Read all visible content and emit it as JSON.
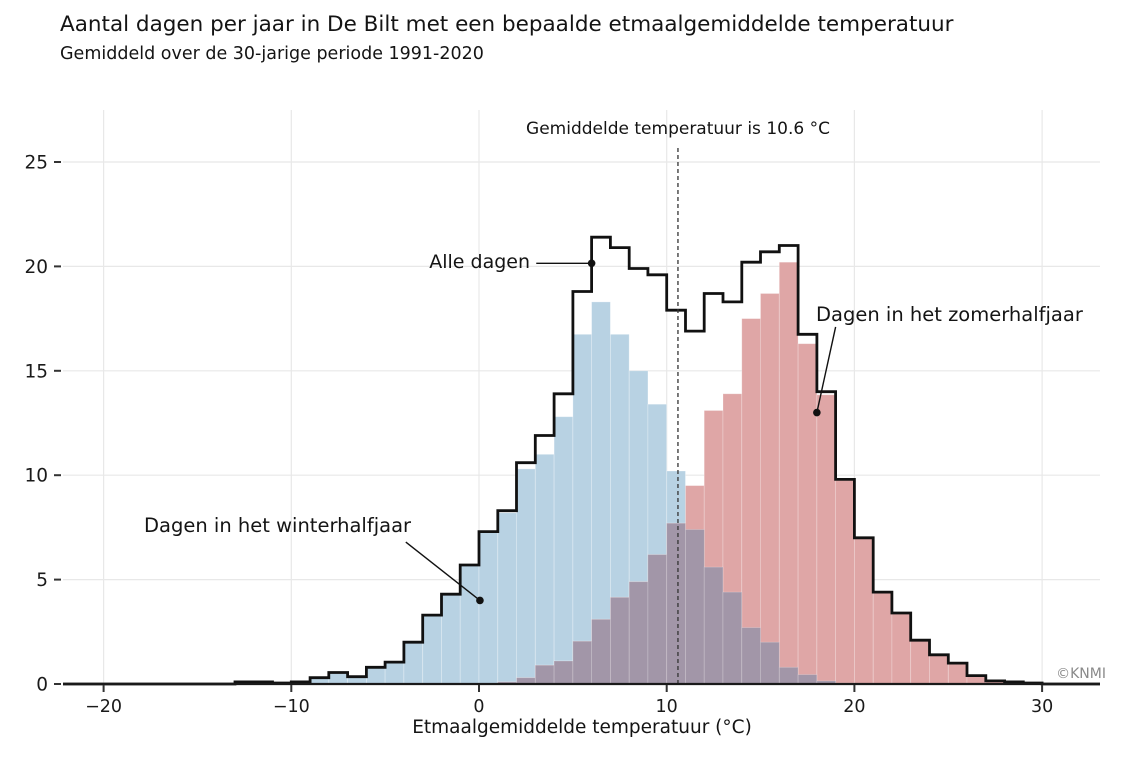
{
  "chart_data": {
    "type": "bar",
    "variant": "step-histogram",
    "title": "Aantal dagen per jaar in De Bilt met een bepaalde etmaalgemiddelde temperatuur",
    "subtitle": "Gemiddeld over de 30-jarige periode 1991-2020",
    "xlabel": "Etmaalgemiddelde temperatuur (°C)",
    "ylabel": "",
    "bin_width": 1,
    "bin_left_edges": [
      -13,
      -12,
      -11,
      -10,
      -9,
      -8,
      -7,
      -6,
      -5,
      -4,
      -3,
      -2,
      -1,
      0,
      1,
      2,
      3,
      4,
      5,
      6,
      7,
      8,
      9,
      10,
      11,
      12,
      13,
      14,
      15,
      16,
      17,
      18,
      19,
      20,
      21,
      22,
      23,
      24,
      25,
      26,
      27,
      28,
      29
    ],
    "series": [
      {
        "name": "Alle dagen",
        "style": "outline",
        "color": "#111111",
        "values": [
          0.1,
          0.1,
          0.05,
          0.1,
          0.3,
          0.55,
          0.35,
          0.8,
          1.05,
          2.0,
          3.3,
          4.3,
          5.7,
          7.3,
          8.3,
          10.6,
          11.9,
          13.9,
          18.8,
          21.4,
          20.9,
          19.9,
          19.6,
          17.9,
          16.9,
          18.7,
          18.3,
          20.2,
          20.7,
          21.0,
          16.75,
          14.0,
          9.8,
          7.0,
          4.4,
          3.4,
          2.1,
          1.4,
          1.0,
          0.4,
          0.15,
          0.1,
          0.05
        ]
      },
      {
        "name": "Dagen in het winterhalfjaar",
        "style": "fill",
        "color": "#b8d2e3",
        "values": [
          0.1,
          0.1,
          0.05,
          0.1,
          0.3,
          0.55,
          0.35,
          0.8,
          1.05,
          2.0,
          3.3,
          4.3,
          5.7,
          7.3,
          8.2,
          10.3,
          11.0,
          12.8,
          16.75,
          18.3,
          16.75,
          15.0,
          13.4,
          10.2,
          7.4,
          5.6,
          4.4,
          2.7,
          2.0,
          0.8,
          0.45,
          0.15,
          0.05,
          0,
          0,
          0,
          0,
          0,
          0,
          0,
          0,
          0,
          0
        ]
      },
      {
        "name": "Dagen in het zomerhalfjaar",
        "style": "fill",
        "color": "#dfa6a6",
        "values": [
          0,
          0,
          0,
          0,
          0,
          0,
          0,
          0,
          0,
          0,
          0,
          0,
          0,
          0,
          0.1,
          0.3,
          0.9,
          1.1,
          2.05,
          3.1,
          4.15,
          4.9,
          6.2,
          7.7,
          9.5,
          13.1,
          13.9,
          17.5,
          18.7,
          20.2,
          16.3,
          13.85,
          9.75,
          7.0,
          4.4,
          3.4,
          2.1,
          1.4,
          1.0,
          0.4,
          0.15,
          0.1,
          0.05
        ]
      }
    ],
    "overlap_color": "#a296a8",
    "mean_line": {
      "x": 10.6,
      "label": "Gemiddelde temperatuur is 10.6 °C",
      "line_style": "dashed"
    },
    "annotations": {
      "alle_dagen": {
        "label": "Alle dagen",
        "point_t": 6.0,
        "point_days": 20.15,
        "from_t": 3.05,
        "from_days": 20.15
      },
      "winter": {
        "label": "Dagen in het winterhalfjaar",
        "point_t": 0.05,
        "point_days": 4.0,
        "from_t": -3.9,
        "from_days": 6.8
      },
      "zomer": {
        "label": "Dagen in het zomerhalfjaar",
        "point_t": 18.0,
        "point_days": 13.0,
        "from_t": 19.0,
        "from_days": 17.1
      }
    },
    "x_ticks": [
      -20,
      -10,
      0,
      10,
      20,
      30
    ],
    "x_tick_labels": [
      "−20",
      "−10",
      "0",
      "10",
      "20",
      "30"
    ],
    "y_ticks": [
      0,
      5,
      10,
      15,
      20,
      25
    ],
    "y_tick_labels": [
      "0",
      "5",
      "10",
      "15",
      "20",
      "25"
    ],
    "xlim": [
      -22.2,
      33.1
    ],
    "ylim": [
      0,
      27.5
    ],
    "grid": true,
    "grid_color": "#e8e8e8"
  },
  "credit": {
    "label": "©KNMI"
  }
}
